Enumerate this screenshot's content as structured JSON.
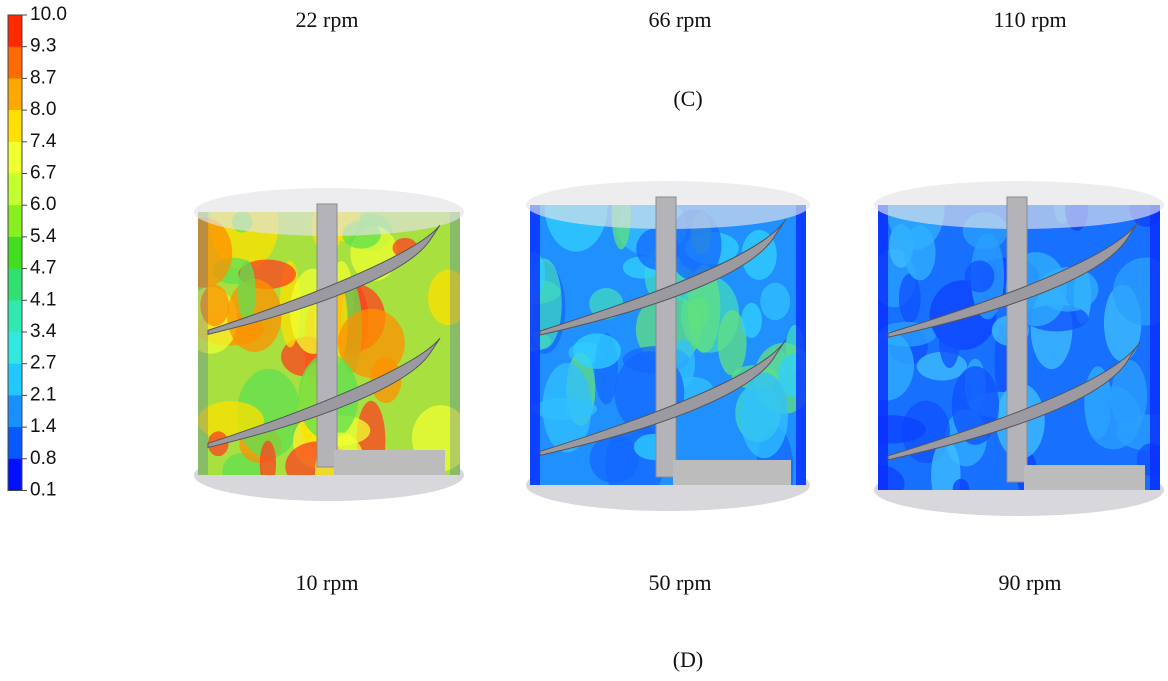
{
  "colorbar": {
    "labels": [
      "10.0",
      "9.3",
      "8.7",
      "8.0",
      "7.4",
      "6.7",
      "6.0",
      "5.4",
      "4.7",
      "4.1",
      "3.4",
      "2.7",
      "2.1",
      "1.4",
      "0.8",
      "0.1"
    ]
  },
  "panel_c": {
    "captions": [
      "22 rpm",
      "66 rpm",
      "110 rpm"
    ],
    "label": "(C)"
  },
  "panel_d": {
    "captions": [
      "10 rpm",
      "50 rpm",
      "90 rpm"
    ],
    "label": "(D)"
  }
}
